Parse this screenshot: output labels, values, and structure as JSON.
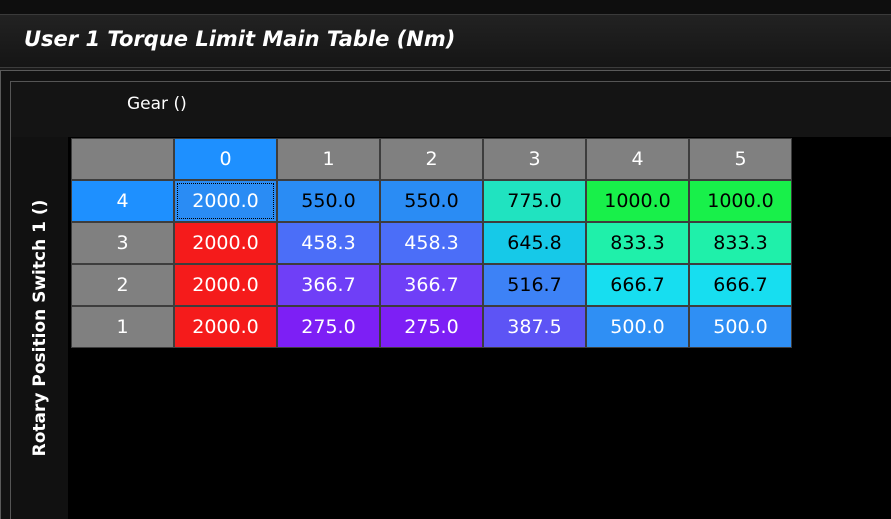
{
  "window": {
    "title": "User 1 Torque Limit Main Table (Nm)"
  },
  "axes": {
    "x_label": "Gear ()",
    "y_label": "Rotary Position Switch 1 ()"
  },
  "table": {
    "column_headers": [
      "0",
      "1",
      "2",
      "3",
      "4",
      "5"
    ],
    "selected_column": "0",
    "rows": [
      {
        "label": "4",
        "selected": true,
        "values": [
          "2000.0",
          "550.0",
          "550.0",
          "775.0",
          "1000.0",
          "1000.0"
        ],
        "colors": [
          "#2a8cf4",
          "#2a8cf4",
          "#2a8cf4",
          "#20e3c0",
          "#18f04a",
          "#18f04a"
        ],
        "text_colors": [
          "#ffffff",
          "#000000",
          "#000000",
          "#000000",
          "#000000",
          "#000000"
        ]
      },
      {
        "label": "3",
        "selected": false,
        "values": [
          "2000.0",
          "458.3",
          "458.3",
          "645.8",
          "833.3",
          "833.3"
        ],
        "colors": [
          "#f51b1b",
          "#4b6ef8",
          "#4b6ef8",
          "#16c9e8",
          "#1ff0aa",
          "#1ff0aa"
        ],
        "text_colors": [
          "#ffffff",
          "#ffffff",
          "#ffffff",
          "#000000",
          "#000000",
          "#000000"
        ]
      },
      {
        "label": "2",
        "selected": false,
        "values": [
          "2000.0",
          "366.7",
          "366.7",
          "516.7",
          "666.7",
          "666.7"
        ],
        "colors": [
          "#f51b1b",
          "#6f3ff7",
          "#6f3ff7",
          "#3d82f6",
          "#17def0",
          "#17def0"
        ],
        "text_colors": [
          "#ffffff",
          "#ffffff",
          "#ffffff",
          "#000000",
          "#000000",
          "#000000"
        ]
      },
      {
        "label": "1",
        "selected": false,
        "values": [
          "2000.0",
          "275.0",
          "275.0",
          "387.5",
          "500.0",
          "500.0"
        ],
        "colors": [
          "#f51b1b",
          "#7d1ff5",
          "#7d1ff5",
          "#5d54f5",
          "#2f8ff4",
          "#2f8ff4"
        ],
        "text_colors": [
          "#ffffff",
          "#ffffff",
          "#ffffff",
          "#ffffff",
          "#ffffff",
          "#ffffff"
        ]
      }
    ],
    "focused_cell": {
      "row": 0,
      "col": 0
    }
  }
}
